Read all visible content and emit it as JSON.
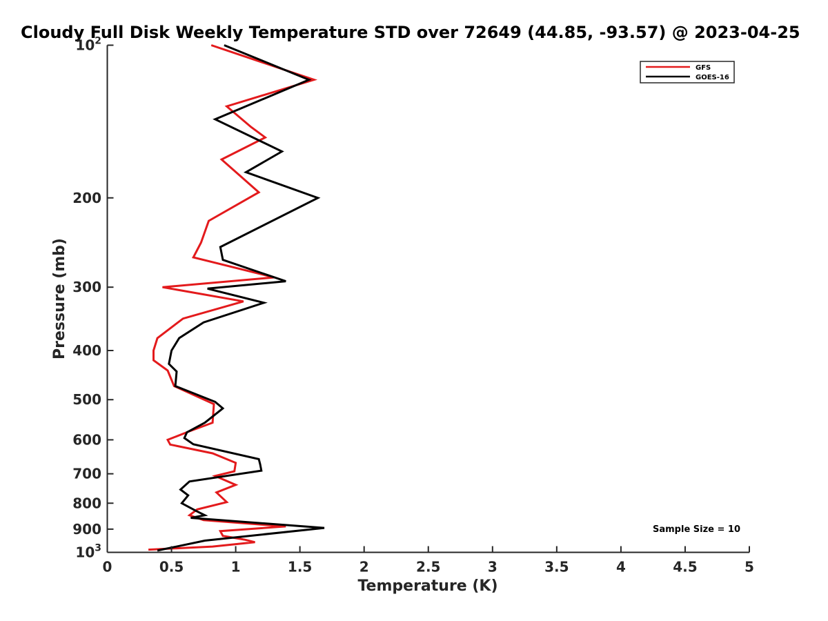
{
  "chart_data": {
    "type": "line",
    "title": "Cloudy Full Disk Weekly Temperature STD over 72649 (44.85, -93.57) @ 2023-04-25",
    "xlabel": "Temperature (K)",
    "ylabel": "Pressure (mb)",
    "xlim": [
      0,
      5
    ],
    "ylim": [
      100,
      1000
    ],
    "y_scale": "log",
    "y_reversed": true,
    "grid": false,
    "legend_position": "top-right",
    "x_ticks": [
      0,
      0.5,
      1,
      1.5,
      2,
      2.5,
      3,
      3.5,
      4,
      4.5,
      5
    ],
    "x_tick_labels": [
      "0",
      "0.5",
      "1",
      "1.5",
      "2",
      "2.5",
      "3",
      "3.5",
      "4",
      "4.5",
      "5"
    ],
    "y_ticks": [
      {
        "value": 100,
        "base": "10",
        "exp": "2"
      },
      {
        "value": 200,
        "base": "200",
        "exp": ""
      },
      {
        "value": 300,
        "base": "300",
        "exp": ""
      },
      {
        "value": 400,
        "base": "400",
        "exp": ""
      },
      {
        "value": 500,
        "base": "500",
        "exp": ""
      },
      {
        "value": 600,
        "base": "600",
        "exp": ""
      },
      {
        "value": 700,
        "base": "700",
        "exp": ""
      },
      {
        "value": 800,
        "base": "800",
        "exp": ""
      },
      {
        "value": 900,
        "base": "900",
        "exp": ""
      },
      {
        "value": 1000,
        "base": "10",
        "exp": "3"
      }
    ],
    "series": [
      {
        "name": "GFS",
        "color": "#e31a1c",
        "points": [
          [
            0.81,
            100
          ],
          [
            1.61,
            117
          ],
          [
            0.93,
            132
          ],
          [
            1.12,
            145
          ],
          [
            1.23,
            152
          ],
          [
            0.89,
            168
          ],
          [
            1.18,
            195
          ],
          [
            0.79,
            222
          ],
          [
            0.73,
            245
          ],
          [
            0.67,
            262
          ],
          [
            1.3,
            287
          ],
          [
            0.43,
            300
          ],
          [
            1.06,
            320
          ],
          [
            0.59,
            346
          ],
          [
            0.39,
            378
          ],
          [
            0.36,
            400
          ],
          [
            0.36,
            418
          ],
          [
            0.47,
            438
          ],
          [
            0.52,
            470
          ],
          [
            0.83,
            510
          ],
          [
            0.82,
            555
          ],
          [
            0.64,
            577
          ],
          [
            0.47,
            600
          ],
          [
            0.49,
            613
          ],
          [
            0.82,
            638
          ],
          [
            1.0,
            666
          ],
          [
            0.99,
            692
          ],
          [
            0.84,
            707
          ],
          [
            1.0,
            736
          ],
          [
            0.85,
            762
          ],
          [
            0.93,
            796
          ],
          [
            0.7,
            823
          ],
          [
            0.64,
            845
          ],
          [
            0.75,
            864
          ],
          [
            1.39,
            889
          ],
          [
            0.88,
            908
          ],
          [
            0.9,
            928
          ],
          [
            1.07,
            944
          ],
          [
            1.15,
            955
          ],
          [
            0.82,
            974
          ],
          [
            0.32,
            988
          ]
        ]
      },
      {
        "name": "GOES-16",
        "color": "#000000",
        "points": [
          [
            0.91,
            100
          ],
          [
            1.57,
            117
          ],
          [
            0.84,
            140
          ],
          [
            1.36,
            162
          ],
          [
            1.08,
            178
          ],
          [
            1.64,
            200
          ],
          [
            0.88,
            250
          ],
          [
            0.9,
            265
          ],
          [
            1.39,
            292
          ],
          [
            0.78,
            302
          ],
          [
            1.22,
            322
          ],
          [
            0.75,
            352
          ],
          [
            0.56,
            378
          ],
          [
            0.5,
            400
          ],
          [
            0.48,
            425
          ],
          [
            0.54,
            440
          ],
          [
            0.53,
            470
          ],
          [
            0.84,
            505
          ],
          [
            0.9,
            520
          ],
          [
            0.76,
            555
          ],
          [
            0.62,
            580
          ],
          [
            0.6,
            595
          ],
          [
            0.67,
            612
          ],
          [
            1.18,
            655
          ],
          [
            1.19,
            670
          ],
          [
            1.2,
            690
          ],
          [
            0.64,
            725
          ],
          [
            0.57,
            752
          ],
          [
            0.63,
            772
          ],
          [
            0.58,
            800
          ],
          [
            0.69,
            828
          ],
          [
            0.76,
            845
          ],
          [
            0.65,
            855
          ],
          [
            1.69,
            895
          ],
          [
            0.76,
            948
          ],
          [
            0.39,
            992
          ]
        ]
      }
    ],
    "annotations": [
      "Sample Size = 10"
    ]
  }
}
